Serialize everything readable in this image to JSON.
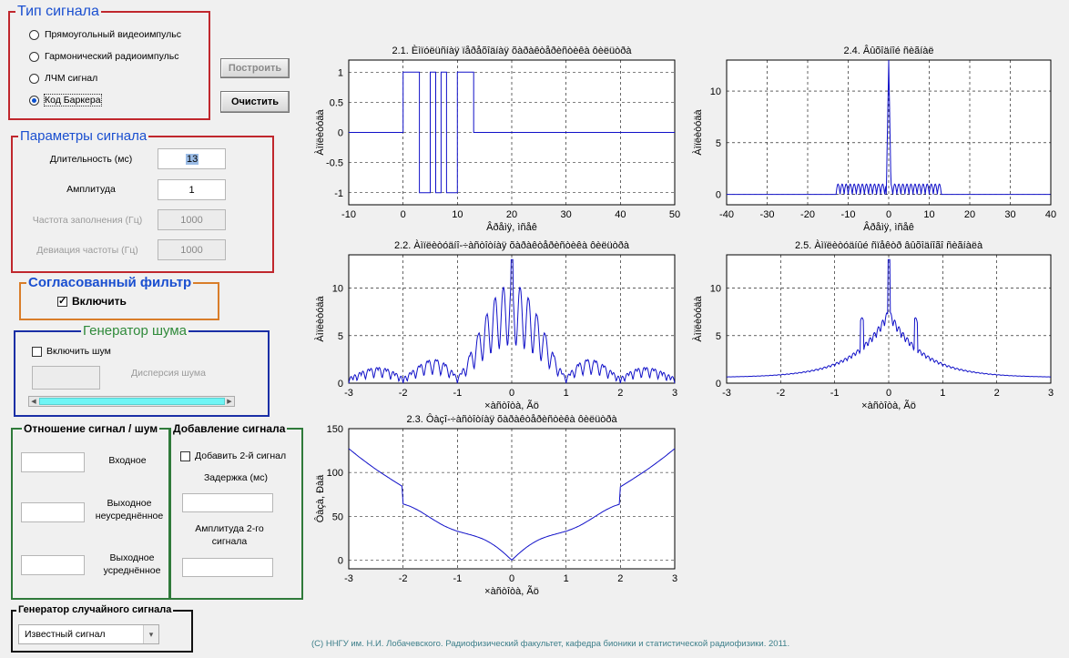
{
  "signal_type": {
    "legend": "Тип сигнала",
    "options": [
      {
        "label": "Прямоугольный видеоимпульс",
        "selected": false
      },
      {
        "label": "Гармонический радиоимпульс",
        "selected": false
      },
      {
        "label": "ЛЧМ сигнал",
        "selected": false
      },
      {
        "label": "Код Баркера",
        "selected": true
      }
    ]
  },
  "buttons": {
    "build": "Построить",
    "clear": "Очистить"
  },
  "params": {
    "legend": "Параметры сигнала",
    "duration_label": "Длительность (мс)",
    "duration_value": "13",
    "amplitude_label": "Амплитуда",
    "amplitude_value": "1",
    "freq_label": "Частота заполнения (Гц)",
    "freq_value": "1000",
    "dev_label": "Девиация частоты (Гц)",
    "dev_value": "1000"
  },
  "matched_filter": {
    "legend": "Согласованный фильтр",
    "enable_label": "Включить",
    "enabled": true
  },
  "noise": {
    "legend": "Генератор шума",
    "enable_label": "Включить шум",
    "enabled": false,
    "variance_label": "Дисперсия шума",
    "variance_value": ""
  },
  "snr": {
    "legend": "Отношение сигнал / шум",
    "input_label": "Входное",
    "out_raw_label": "Выходное неусреднённое",
    "out_avg_label": "Выходное усреднённое"
  },
  "add_signal": {
    "legend": "Добавление сигнала",
    "add_label": "Добавить 2-й сигнал",
    "delay_label": "Задержка (мс)",
    "amp2_label": "Амплитуда 2-го сигнала"
  },
  "random_gen": {
    "legend": "Генератор случайного сигнала",
    "selected": "Известный сигнал"
  },
  "footer": "(С) ННГУ им. Н.И. Лобачевского. Радиофизический факультет, кафедра бионики и статистической радиофизики. 2011.",
  "colors": {
    "accent": "#0a4fcf",
    "plot_line": "#1010c8",
    "title_blue": "#1a4fd0",
    "title_green": "#2f8a3a",
    "slider_fill": "#6ff5f5"
  },
  "chart_data": [
    {
      "id": "c21",
      "type": "line",
      "title": "2.1. Èìïóëüñíàÿ ïåðåõîäíàÿ õàðàêòåðèñòèêà ôèëüòðà",
      "xlabel": "Âðåìÿ, ìñåê",
      "ylabel": "Àìïëèòóäà",
      "xlim": [
        -10,
        50
      ],
      "ylim": [
        -1.2,
        1.2
      ],
      "xticks": [
        -10,
        0,
        10,
        20,
        30,
        40,
        50
      ],
      "yticks": [
        -1,
        -0.5,
        0,
        0.5,
        1
      ],
      "grid": true,
      "x": [
        -10,
        0,
        0,
        3,
        3,
        5,
        5,
        6,
        6,
        7,
        7,
        8,
        8,
        10,
        10,
        12,
        12,
        13,
        13,
        50
      ],
      "y": [
        0,
        0,
        1,
        1,
        -1,
        -1,
        1,
        1,
        -1,
        -1,
        1,
        1,
        -1,
        -1,
        1,
        1,
        1,
        1,
        0,
        0
      ]
    },
    {
      "id": "c24",
      "type": "line",
      "title": "2.4. Âûõîäíîé ñèãíàë",
      "xlabel": "Âðåìÿ, ìñåê",
      "ylabel": "Àìïëèòóäà",
      "xlim": [
        -40,
        40
      ],
      "ylim": [
        -1,
        13
      ],
      "xticks": [
        -40,
        -30,
        -20,
        -10,
        0,
        10,
        20,
        30,
        40
      ],
      "yticks": [
        0,
        5,
        10
      ],
      "grid": true,
      "peak": 13,
      "sidelobe": 1,
      "support": [
        -13,
        13
      ]
    },
    {
      "id": "c22",
      "type": "line",
      "title": "2.2. Àìïëèòóäíî-÷àñòîòíàÿ õàðàêòåðèñòèêà ôèëüòðà",
      "xlabel": "×àñòîòà, Ãö",
      "ylabel": "Àìïëèòóäà",
      "xlim": [
        -3,
        3
      ],
      "ylim": [
        0,
        13.5
      ],
      "xticks": [
        -3,
        -2,
        -1,
        0,
        1,
        2,
        3
      ],
      "yticks": [
        0,
        5,
        10
      ],
      "grid": true,
      "peak": 13
    },
    {
      "id": "c25",
      "type": "line",
      "title": "2.5. Àìïëèòóäíûé ñïåêòð âûõîäíîãî ñèãíàëà",
      "xlabel": "×àñòîòà, Ãö",
      "ylabel": "Àìïëèòóäà",
      "xlim": [
        -3,
        3
      ],
      "ylim": [
        0,
        13.5
      ],
      "xticks": [
        -3,
        -2,
        -1,
        0,
        1,
        2,
        3
      ],
      "yticks": [
        0,
        5,
        10
      ],
      "grid": true,
      "peak": 13
    },
    {
      "id": "c23",
      "type": "line",
      "title": "2.3. Ôàçî-÷àñòîòíàÿ õàðàêòåðèñòèêà ôèëüòðà",
      "xlabel": "×àñòîòà, Ãö",
      "ylabel": "Ôàçà, Ðàä",
      "xlim": [
        -3,
        3
      ],
      "ylim": [
        -10,
        150
      ],
      "xticks": [
        -3,
        -2,
        -1,
        0,
        1,
        2,
        3
      ],
      "yticks": [
        0,
        50,
        100,
        150
      ],
      "grid": true
    }
  ]
}
